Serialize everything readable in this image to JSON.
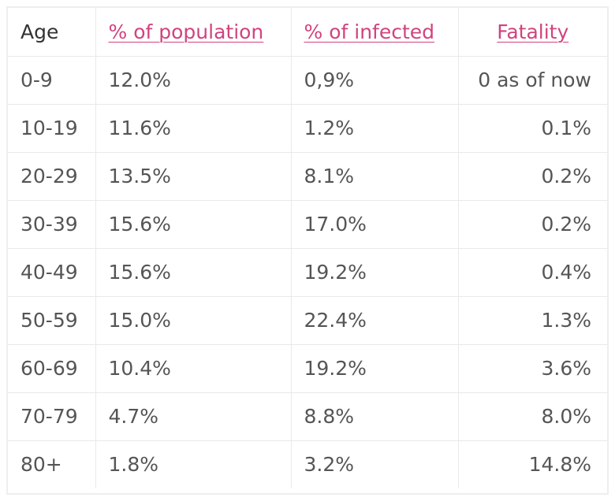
{
  "table": {
    "headers": {
      "age": "Age",
      "population": "% of population",
      "infected": "% of infected",
      "fatality": "Fatality"
    },
    "rows": [
      {
        "age": "0-9",
        "population": "12.0%",
        "infected": "0,9%",
        "fatality": "0 as of now"
      },
      {
        "age": "10-19",
        "population": "11.6%",
        "infected": "1.2%",
        "fatality": "0.1%"
      },
      {
        "age": "20-29",
        "population": "13.5%",
        "infected": "8.1%",
        "fatality": "0.2%"
      },
      {
        "age": "30-39",
        "population": "15.6%",
        "infected": "17.0%",
        "fatality": "0.2%"
      },
      {
        "age": "40-49",
        "population": "15.6%",
        "infected": "19.2%",
        "fatality": "0.4%"
      },
      {
        "age": "50-59",
        "population": "15.0%",
        "infected": "22.4%",
        "fatality": "1.3%"
      },
      {
        "age": "60-69",
        "population": "10.4%",
        "infected": "19.2%",
        "fatality": "3.6%"
      },
      {
        "age": "70-79",
        "population": "4.7%",
        "infected": "8.8%",
        "fatality": "8.0%"
      },
      {
        "age": "80+",
        "population": "1.8%",
        "infected": "3.2%",
        "fatality": "14.8%"
      }
    ]
  },
  "colors": {
    "link": "#d1437e",
    "border": "#e9e9e9",
    "text": "#555555"
  }
}
